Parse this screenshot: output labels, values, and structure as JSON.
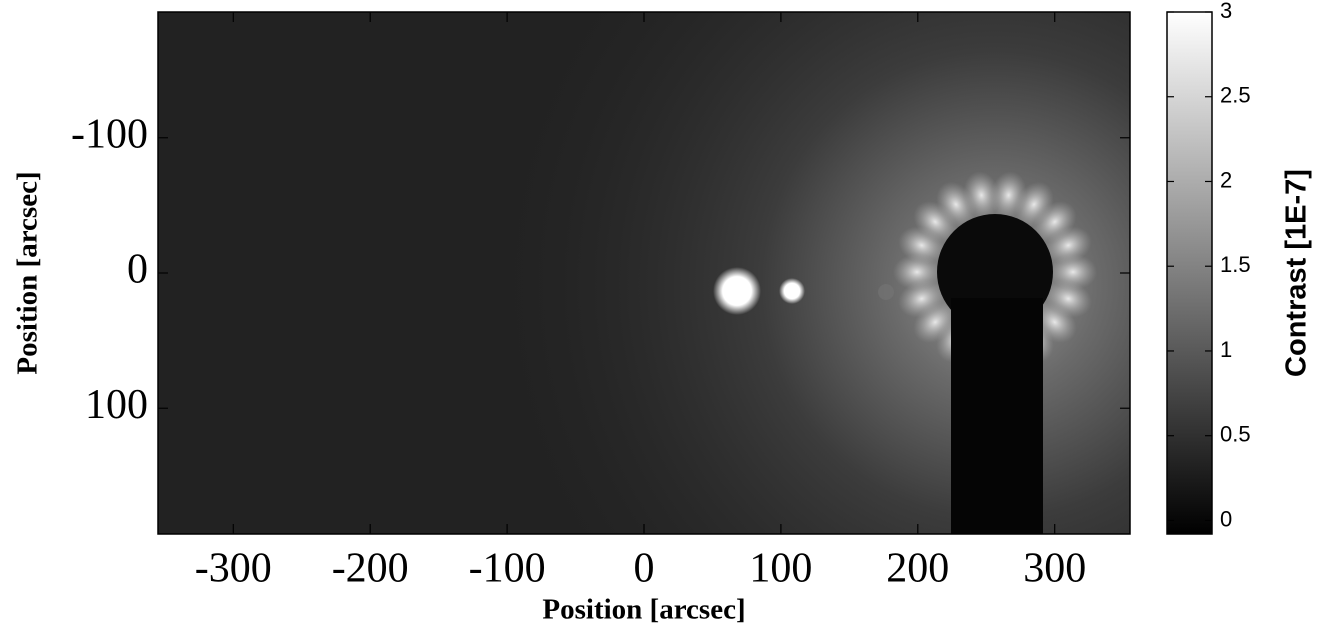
{
  "chart_data": {
    "type": "image",
    "x_label": "Position [arcsec]",
    "y_label": "Position [arcsec]",
    "xlim": [
      -355,
      355
    ],
    "xticks": [
      -300,
      -200,
      -100,
      0,
      100,
      200,
      300
    ],
    "ylim": [
      -193,
      193
    ],
    "yticks": [
      -100,
      0,
      100
    ],
    "y_reversed": true,
    "colorbar": {
      "label": "Contrast [1E-7]",
      "lim": [
        -0.08,
        3
      ],
      "ticks": [
        3,
        2.5,
        2,
        1.5,
        1,
        0.5,
        0
      ]
    }
  }
}
